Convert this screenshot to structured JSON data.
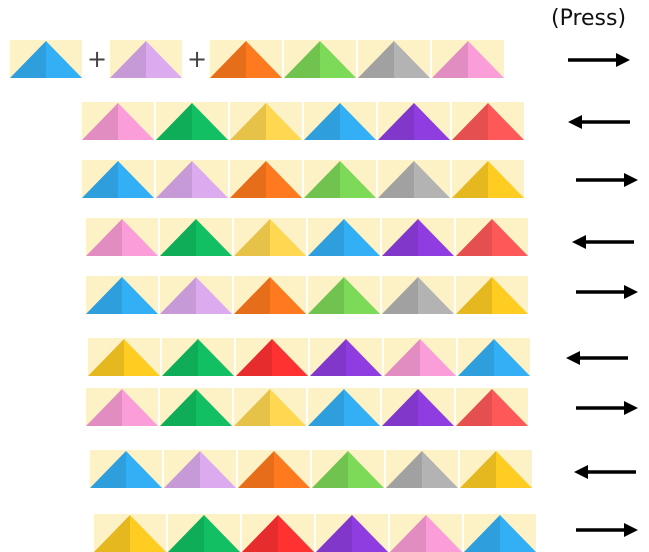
{
  "header": {
    "press_label": "(Press)"
  },
  "colors": {
    "cream": "#fdf1c6",
    "blue": "#33b0f5",
    "lilac": "#dcaaef",
    "orange": "#ff7a1e",
    "lime": "#7dd958",
    "gray": "#b3b3b3",
    "pink": "#fb9dd8",
    "green": "#12c063",
    "yellow": "#ffd750",
    "gold": "#ffcc22",
    "purple": "#8f3de0",
    "coral": "#fe5858",
    "red": "#ff3131"
  },
  "rows": [
    {
      "colors": [
        "blue",
        "+",
        "lilac",
        "+",
        "orange",
        "lime",
        "gray",
        "pink"
      ],
      "arrow": "right"
    },
    {
      "colors": [
        "pink",
        "green",
        "yellow",
        "blue",
        "purple",
        "coral"
      ],
      "arrow": "left"
    },
    {
      "colors": [
        "blue",
        "lilac",
        "orange",
        "lime",
        "gray",
        "gold"
      ],
      "arrow": "right"
    },
    {
      "colors": [
        "pink",
        "green",
        "yellow",
        "blue",
        "purple",
        "coral"
      ],
      "arrow": "left"
    },
    {
      "colors": [
        "blue",
        "lilac",
        "orange",
        "lime",
        "gray",
        "gold"
      ],
      "arrow": "right"
    },
    {
      "colors": [
        "gold",
        "green",
        "red",
        "purple",
        "pink",
        "blue"
      ],
      "arrow": "left"
    },
    {
      "colors": [
        "pink",
        "green",
        "yellow",
        "blue",
        "purple",
        "coral"
      ],
      "arrow": "right"
    },
    {
      "colors": [
        "blue",
        "lilac",
        "orange",
        "lime",
        "gray",
        "gold"
      ],
      "arrow": "left"
    },
    {
      "colors": [
        "gold",
        "green",
        "red",
        "purple",
        "pink",
        "blue"
      ],
      "arrow": "right"
    }
  ]
}
